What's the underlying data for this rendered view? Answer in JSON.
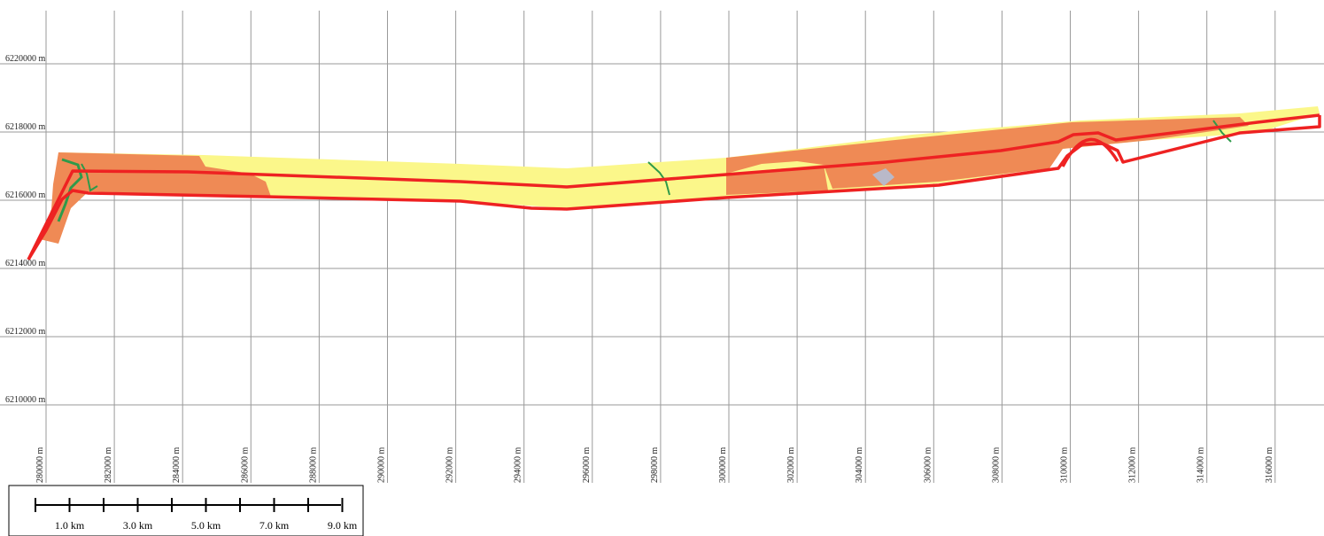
{
  "map": {
    "grid": {
      "x_unit": "m",
      "y_unit": "m",
      "x_ticks": [
        "280000 m",
        "282000 m",
        "284000 m",
        "286000 m",
        "288000 m",
        "290000 m",
        "292000 m",
        "294000 m",
        "296000 m",
        "298000 m",
        "300000 m",
        "302000 m",
        "304000 m",
        "306000 m",
        "308000 m",
        "310000 m",
        "312000 m",
        "314000 m",
        "316000 m"
      ],
      "y_ticks": [
        "6220000 m",
        "6218000 m",
        "6216000 m",
        "6214000 m",
        "6212000 m",
        "6210000 m"
      ]
    },
    "colors": {
      "corridor_outline": "#ee2222",
      "land_orange": "#ef8a55",
      "land_yellow": "#fbf78a",
      "vegetation_green": "#2e9a4a",
      "urban_grey": "#b9b9c9",
      "grid": "#9a9a9a"
    },
    "scale_bar": {
      "labels": [
        "1.0 km",
        "3.0 km",
        "5.0 km",
        "7.0 km",
        "9.0 km"
      ]
    }
  }
}
